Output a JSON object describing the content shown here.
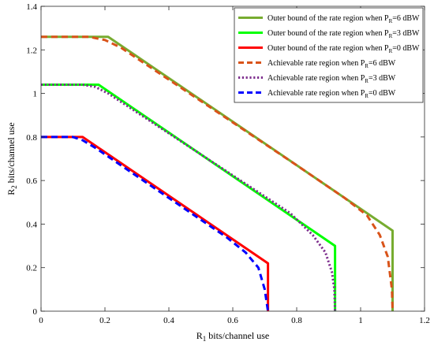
{
  "chart_data": {
    "type": "line",
    "xlabel": "bits/channel use",
    "xlabel_symbol": "R",
    "xlabel_sub": "1",
    "ylabel": "bits/channel use",
    "ylabel_symbol": "R",
    "ylabel_sub": "2",
    "xlim": [
      0,
      1.2
    ],
    "ylim": [
      0,
      1.4
    ],
    "xticks": [
      "0",
      "0.2",
      "0.4",
      "0.6",
      "0.8",
      "1",
      "1.2"
    ],
    "yticks": [
      "0",
      "0.2",
      "0.4",
      "0.6",
      "0.8",
      "1",
      "1.2",
      "1.4"
    ],
    "grid": false,
    "legend_position": "top-right",
    "series": [
      {
        "name_main": "Outer bound of the rate region  when P",
        "name_sub": "R",
        "name_tail": "=6 dBW",
        "color": "#77AC30",
        "dash": "solid",
        "x": [
          0,
          0.21,
          1.1,
          1.1
        ],
        "y": [
          1.26,
          1.26,
          0.37,
          0
        ]
      },
      {
        "name_main": "Outer bound of the rate region  when P",
        "name_sub": "R",
        "name_tail": "=3 dBW",
        "color": "#00FF00",
        "dash": "solid",
        "x": [
          0,
          0.18,
          0.92,
          0.92
        ],
        "y": [
          1.04,
          1.04,
          0.3,
          0
        ]
      },
      {
        "name_main": "Outer bound of the rate region  when P",
        "name_sub": "R",
        "name_tail": "=0 dBW",
        "color": "#FF0000",
        "dash": "solid",
        "x": [
          0,
          0.13,
          0.71,
          0.71
        ],
        "y": [
          0.8,
          0.8,
          0.22,
          0
        ]
      },
      {
        "name_main": "Achievable rate region when P",
        "name_sub": "R",
        "name_tail": "=6 dBW",
        "color": "#D95319",
        "dash": "dashed",
        "x": [
          0,
          0.15,
          0.2,
          0.25,
          0.5,
          0.8,
          0.95,
          1.02,
          1.06,
          1.085,
          1.098,
          1.1
        ],
        "y": [
          1.26,
          1.26,
          1.245,
          1.21,
          0.965,
          0.67,
          0.52,
          0.44,
          0.35,
          0.25,
          0.1,
          0
        ]
      },
      {
        "name_main": "Achievable rate region when P",
        "name_sub": "R",
        "name_tail": "=3 dBW",
        "color": "#7E2F8E",
        "dash": "dotted",
        "x": [
          0,
          0.13,
          0.17,
          0.21,
          0.5,
          0.78,
          0.85,
          0.89,
          0.91,
          0.918,
          0.92
        ],
        "y": [
          1.04,
          1.04,
          1.03,
          1.0,
          0.72,
          0.45,
          0.35,
          0.27,
          0.18,
          0.1,
          0
        ]
      },
      {
        "name_main": "Achievable rate region when P",
        "name_sub": "R",
        "name_tail": "=0 dBW",
        "color": "#0000FF",
        "dash": "dashed",
        "x": [
          0,
          0.1,
          0.13,
          0.17,
          0.4,
          0.58,
          0.64,
          0.68,
          0.7,
          0.71
        ],
        "y": [
          0.8,
          0.8,
          0.785,
          0.75,
          0.52,
          0.34,
          0.27,
          0.2,
          0.1,
          0
        ]
      }
    ]
  }
}
